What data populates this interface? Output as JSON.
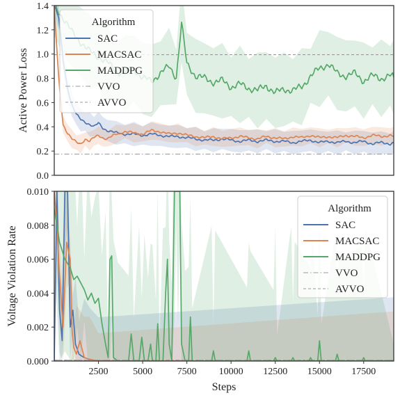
{
  "colors": {
    "SAC": "#4c72b0",
    "MACSAC": "#dd8452",
    "MADDPG": "#55a868",
    "VVO": "#999999",
    "AVVO": "#999999",
    "axes_edge": "#333333"
  },
  "shared_x": {
    "label": "Steps",
    "range": [
      0,
      19200
    ],
    "ticks": [
      2500,
      5000,
      7500,
      10000,
      12500,
      15000,
      17500
    ],
    "tick_labels": [
      "2500",
      "5000",
      "7500",
      "10000",
      "12500",
      "15000",
      "17500"
    ]
  },
  "chart_data": [
    {
      "type": "line",
      "ylabel": "Active Power Loss",
      "ylim": [
        0.0,
        1.4
      ],
      "yticks": [
        0.0,
        0.2,
        0.4,
        0.6,
        0.8,
        1.0,
        1.2,
        1.4
      ],
      "ytick_labels": [
        "0.0",
        "0.2",
        "0.4",
        "0.6",
        "0.8",
        "1.0",
        "1.2",
        "1.4"
      ],
      "legend": {
        "title": "Algorithm",
        "placement": "top-left",
        "entries": [
          "SAC",
          "MACSAC",
          "MADDPG",
          "VVO",
          "AVVO"
        ]
      },
      "reference_lines": [
        {
          "name": "VVO",
          "y": 0.175,
          "style": "dashdot"
        },
        {
          "name": "AVVO",
          "y": 0.995,
          "style": "dashed"
        }
      ],
      "series": [
        {
          "name": "SAC",
          "points": [
            [
              0,
              1.4
            ],
            [
              250,
              1.3
            ],
            [
              500,
              0.95
            ],
            [
              750,
              0.72
            ],
            [
              1000,
              0.58
            ],
            [
              1250,
              0.5
            ],
            [
              1500,
              0.46
            ],
            [
              1750,
              0.44
            ],
            [
              2000,
              0.42
            ],
            [
              2250,
              0.4
            ],
            [
              2500,
              0.43
            ],
            [
              2750,
              0.39
            ],
            [
              3000,
              0.37
            ],
            [
              3500,
              0.35
            ],
            [
              4000,
              0.34
            ],
            [
              4500,
              0.34
            ],
            [
              5000,
              0.33
            ],
            [
              5500,
              0.34
            ],
            [
              6000,
              0.33
            ],
            [
              6500,
              0.32
            ],
            [
              7000,
              0.32
            ],
            [
              7500,
              0.31
            ],
            [
              8000,
              0.3
            ],
            [
              8500,
              0.29
            ],
            [
              9000,
              0.29
            ],
            [
              9500,
              0.3
            ],
            [
              10000,
              0.29
            ],
            [
              10500,
              0.28
            ],
            [
              11000,
              0.29
            ],
            [
              11500,
              0.28
            ],
            [
              12000,
              0.29
            ],
            [
              12500,
              0.28
            ],
            [
              13000,
              0.28
            ],
            [
              13500,
              0.27
            ],
            [
              14000,
              0.28
            ],
            [
              14500,
              0.29
            ],
            [
              15000,
              0.27
            ],
            [
              15500,
              0.28
            ],
            [
              16000,
              0.27
            ],
            [
              16500,
              0.28
            ],
            [
              17000,
              0.27
            ],
            [
              17500,
              0.28
            ],
            [
              18000,
              0.26
            ],
            [
              18500,
              0.27
            ],
            [
              19000,
              0.26
            ],
            [
              19200,
              0.27
            ]
          ],
          "band": [
            0.07,
            0.1
          ]
        },
        {
          "name": "MACSAC",
          "points": [
            [
              0,
              1.38
            ],
            [
              250,
              0.8
            ],
            [
              500,
              0.42
            ],
            [
              750,
              0.35
            ],
            [
              1000,
              0.3
            ],
            [
              1250,
              0.27
            ],
            [
              1500,
              0.26
            ],
            [
              1750,
              0.3
            ],
            [
              2000,
              0.28
            ],
            [
              2250,
              0.31
            ],
            [
              2500,
              0.33
            ],
            [
              2750,
              0.31
            ],
            [
              3000,
              0.3
            ],
            [
              3500,
              0.34
            ],
            [
              4000,
              0.36
            ],
            [
              4500,
              0.35
            ],
            [
              5000,
              0.34
            ],
            [
              5500,
              0.37
            ],
            [
              6000,
              0.36
            ],
            [
              6500,
              0.34
            ],
            [
              7000,
              0.35
            ],
            [
              7500,
              0.33
            ],
            [
              8000,
              0.32
            ],
            [
              8500,
              0.31
            ],
            [
              9000,
              0.32
            ],
            [
              9500,
              0.3
            ],
            [
              10000,
              0.31
            ],
            [
              10500,
              0.32
            ],
            [
              11000,
              0.31
            ],
            [
              11500,
              0.3
            ],
            [
              12000,
              0.32
            ],
            [
              12500,
              0.31
            ],
            [
              13000,
              0.3
            ],
            [
              13500,
              0.32
            ],
            [
              14000,
              0.31
            ],
            [
              14500,
              0.33
            ],
            [
              15000,
              0.31
            ],
            [
              15500,
              0.32
            ],
            [
              16000,
              0.31
            ],
            [
              16500,
              0.33
            ],
            [
              17000,
              0.32
            ],
            [
              17500,
              0.31
            ],
            [
              18000,
              0.33
            ],
            [
              18500,
              0.32
            ],
            [
              19000,
              0.33
            ],
            [
              19200,
              0.32
            ]
          ],
          "band": [
            0.05,
            0.08
          ]
        },
        {
          "name": "MADDPG",
          "points": [
            [
              0,
              1.4
            ],
            [
              500,
              1.3
            ],
            [
              1000,
              1.18
            ],
            [
              1500,
              1.1
            ],
            [
              2000,
              1.02
            ],
            [
              2500,
              0.98
            ],
            [
              3000,
              0.93
            ],
            [
              3500,
              0.86
            ],
            [
              4000,
              0.84
            ],
            [
              4500,
              0.88
            ],
            [
              5000,
              0.8
            ],
            [
              5500,
              0.78
            ],
            [
              6000,
              0.84
            ],
            [
              6500,
              0.9
            ],
            [
              6900,
              0.81
            ],
            [
              7200,
              1.25
            ],
            [
              7500,
              0.92
            ],
            [
              8000,
              0.82
            ],
            [
              8500,
              0.8
            ],
            [
              9000,
              0.77
            ],
            [
              9500,
              0.78
            ],
            [
              10000,
              0.73
            ],
            [
              10500,
              0.75
            ],
            [
              11000,
              0.72
            ],
            [
              11500,
              0.7
            ],
            [
              12000,
              0.74
            ],
            [
              12500,
              0.68
            ],
            [
              13000,
              0.71
            ],
            [
              13500,
              0.7
            ],
            [
              14000,
              0.73
            ],
            [
              14500,
              0.82
            ],
            [
              15000,
              0.88
            ],
            [
              15500,
              0.92
            ],
            [
              16000,
              0.84
            ],
            [
              16500,
              0.82
            ],
            [
              17000,
              0.84
            ],
            [
              17500,
              0.78
            ],
            [
              18000,
              0.82
            ],
            [
              18500,
              0.8
            ],
            [
              19000,
              0.82
            ],
            [
              19200,
              0.81
            ]
          ],
          "band": [
            0.22,
            0.32
          ]
        }
      ]
    },
    {
      "type": "line",
      "ylabel": "Voltage Violation Rate",
      "ylim": [
        0.0,
        0.01
      ],
      "yticks": [
        0.0,
        0.002,
        0.004,
        0.006,
        0.008,
        0.01
      ],
      "ytick_labels": [
        "0.000",
        "0.002",
        "0.004",
        "0.006",
        "0.008",
        "0.010"
      ],
      "legend": {
        "title": "Algorithm",
        "placement": "top-right",
        "entries": [
          "SAC",
          "MACSAC",
          "MADDPG",
          "VVO",
          "AVVO"
        ]
      },
      "reference_lines": [
        {
          "name": "VVO",
          "y": 5e-05,
          "style": "dashdot"
        },
        {
          "name": "AVVO",
          "y": 5e-05,
          "style": "dashed"
        }
      ],
      "series": [
        {
          "name": "SAC",
          "points": [
            [
              0,
              0.0
            ],
            [
              150,
              0.01
            ],
            [
              300,
              0.003
            ],
            [
              450,
              0.0012
            ],
            [
              600,
              0.01
            ],
            [
              750,
              0.01
            ],
            [
              900,
              0.002
            ],
            [
              1050,
              0.003
            ],
            [
              1200,
              0.001
            ],
            [
              1400,
              0.0004
            ],
            [
              1700,
              0.0002
            ],
            [
              2000,
              0.0001
            ],
            [
              2500,
              0.0
            ],
            [
              19200,
              0.0
            ]
          ],
          "band": [
            0.0008,
            0.004
          ]
        },
        {
          "name": "MACSAC",
          "points": [
            [
              0,
              0.01
            ],
            [
              150,
              0.008
            ],
            [
              300,
              0.005
            ],
            [
              500,
              0.002
            ],
            [
              700,
              0.007
            ],
            [
              900,
              0.006
            ],
            [
              1000,
              0.002
            ],
            [
              1100,
              0.0008
            ],
            [
              1250,
              0.0004
            ],
            [
              1450,
              0.0012
            ],
            [
              1700,
              0.0002
            ],
            [
              2000,
              0.0001
            ],
            [
              2500,
              0.0
            ],
            [
              19200,
              0.0
            ]
          ],
          "band": [
            0.0006,
            0.003
          ]
        },
        {
          "name": "MADDPG",
          "points": [
            [
              0,
              0.009
            ],
            [
              300,
              0.007
            ],
            [
              600,
              0.006
            ],
            [
              900,
              0.0055
            ],
            [
              1100,
              0.0048
            ],
            [
              1300,
              0.005
            ],
            [
              1500,
              0.0046
            ],
            [
              1700,
              0.0042
            ],
            [
              1900,
              0.0036
            ],
            [
              2100,
              0.004
            ],
            [
              2300,
              0.0034
            ],
            [
              2500,
              0.0037
            ],
            [
              2700,
              0.0022
            ],
            [
              2900,
              0.001
            ],
            [
              3050,
              0.0002
            ],
            [
              3150,
              0.006
            ],
            [
              3250,
              0.0062
            ],
            [
              3350,
              0.0002
            ],
            [
              3600,
              0.0
            ],
            [
              4200,
              0.0
            ],
            [
              4350,
              0.0016
            ],
            [
              4500,
              0.0
            ],
            [
              4800,
              0.0
            ],
            [
              4950,
              0.0014
            ],
            [
              5100,
              0.0
            ],
            [
              5300,
              0.0
            ],
            [
              5450,
              0.001
            ],
            [
              5550,
              0.0
            ],
            [
              5750,
              0.0
            ],
            [
              5850,
              0.0022
            ],
            [
              5950,
              0.0
            ],
            [
              6150,
              0.0
            ],
            [
              6300,
              0.004
            ],
            [
              6400,
              0.006
            ],
            [
              6500,
              0.001
            ],
            [
              6650,
              0.0
            ],
            [
              6800,
              0.01
            ],
            [
              6900,
              0.01
            ],
            [
              7000,
              0.01
            ],
            [
              7100,
              0.01
            ],
            [
              7200,
              0.001
            ],
            [
              7400,
              0.0
            ],
            [
              7600,
              0.0
            ],
            [
              7700,
              0.0026
            ],
            [
              7800,
              0.0
            ],
            [
              8900,
              0.0
            ],
            [
              9000,
              0.0006
            ],
            [
              9100,
              0.0
            ],
            [
              10900,
              0.0
            ],
            [
              11000,
              0.0006
            ],
            [
              11100,
              0.0
            ],
            [
              12400,
              0.0
            ],
            [
              12500,
              0.0002
            ],
            [
              12600,
              0.0
            ],
            [
              13400,
              0.0
            ],
            [
              13500,
              0.0002
            ],
            [
              13600,
              0.0
            ],
            [
              14400,
              0.0
            ],
            [
              14500,
              0.0002
            ],
            [
              14600,
              0.0
            ],
            [
              14900,
              0.0
            ],
            [
              15000,
              0.0012
            ],
            [
              15100,
              0.0
            ],
            [
              15900,
              0.0
            ],
            [
              16000,
              0.0004
            ],
            [
              16100,
              0.0
            ],
            [
              17400,
              0.0
            ],
            [
              17500,
              0.0002
            ],
            [
              17600,
              0.0
            ],
            [
              19200,
              0.0
            ]
          ],
          "band": [
            0.001,
            0.008
          ]
        }
      ]
    }
  ]
}
